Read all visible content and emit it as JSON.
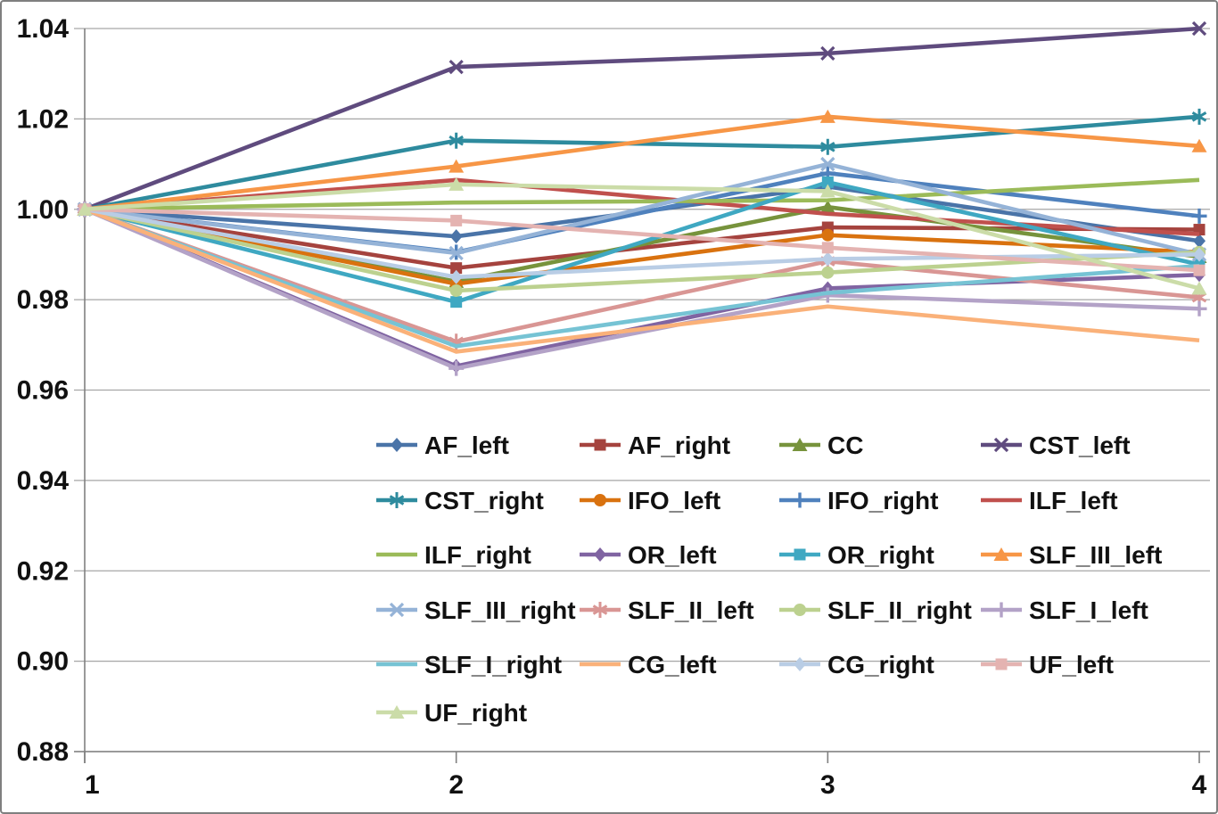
{
  "figure": {
    "background": "#ffffff",
    "border_color": "#7f7f7f",
    "gridline_color": "#a6a6a6",
    "axis_color": "#808080",
    "text_color": "#111111"
  },
  "chart_data": {
    "type": "line",
    "x": [
      1,
      2,
      3,
      4
    ],
    "xtick_labels": [
      "1",
      "2",
      "3",
      "4"
    ],
    "ytick_labels": [
      "1.04",
      "1.02",
      "1.00",
      "0.98",
      "0.96",
      "0.94",
      "0.92",
      "0.90",
      "0.88"
    ],
    "ylim": [
      0.88,
      1.04
    ],
    "ytick_step": 0.02,
    "xlabel": "",
    "ylabel": "",
    "title": "",
    "grid": true,
    "legend_position": "inside-lower-center",
    "legend_columns": 4,
    "series": [
      {
        "name": "AF_left",
        "color": "#4a74a8",
        "marker": "diamond",
        "values": [
          1.0,
          0.994,
          1.005,
          0.993
        ]
      },
      {
        "name": "AF_right",
        "color": "#a5433e",
        "marker": "square",
        "values": [
          1.0,
          0.987,
          0.996,
          0.9955
        ]
      },
      {
        "name": "CC",
        "color": "#77933c",
        "marker": "triangle",
        "values": [
          1.0,
          0.984,
          1.0005,
          0.9895
        ]
      },
      {
        "name": "CST_left",
        "color": "#5f4b7e",
        "marker": "x",
        "values": [
          1.0,
          1.0315,
          1.0345,
          1.04
        ]
      },
      {
        "name": "CST_right",
        "color": "#2e8b9e",
        "marker": "asterisk",
        "values": [
          1.0,
          1.0152,
          1.0138,
          1.0205
        ]
      },
      {
        "name": "IFO_left",
        "color": "#d9720f",
        "marker": "circle",
        "values": [
          1.0,
          0.9835,
          0.9943,
          0.9905
        ]
      },
      {
        "name": "IFO_right",
        "color": "#4f81bd",
        "marker": "plus",
        "values": [
          1.0,
          0.9905,
          1.008,
          0.9985
        ]
      },
      {
        "name": "ILF_left",
        "color": "#c0504d",
        "marker": "dash",
        "values": [
          1.0,
          1.0065,
          0.999,
          0.9945
        ]
      },
      {
        "name": "ILF_right",
        "color": "#9bbb59",
        "marker": "dot",
        "values": [
          1.0,
          1.0015,
          1.002,
          1.0065
        ]
      },
      {
        "name": "OR_left",
        "color": "#8064a2",
        "marker": "diamond",
        "values": [
          1.0,
          0.9653,
          0.9825,
          0.9855
        ]
      },
      {
        "name": "OR_right",
        "color": "#3fa8c2",
        "marker": "square",
        "values": [
          1.0,
          0.9795,
          1.006,
          0.9878
        ]
      },
      {
        "name": "SLF_III_left",
        "color": "#f79646",
        "marker": "triangle",
        "values": [
          1.0,
          1.0095,
          1.0205,
          1.014
        ]
      },
      {
        "name": "SLF_III_right",
        "color": "#95b3d7",
        "marker": "x",
        "values": [
          1.0,
          0.9903,
          1.01,
          0.99
        ]
      },
      {
        "name": "SLF_II_left",
        "color": "#d99694",
        "marker": "asterisk",
        "values": [
          1.0,
          0.9707,
          0.9885,
          0.9805
        ]
      },
      {
        "name": "SLF_II_right",
        "color": "#bcd18f",
        "marker": "circle",
        "values": [
          1.0,
          0.982,
          0.986,
          0.9905
        ]
      },
      {
        "name": "SLF_I_left",
        "color": "#b3a2c7",
        "marker": "plus",
        "values": [
          1.0,
          0.9648,
          0.981,
          0.978
        ]
      },
      {
        "name": "SLF_I_right",
        "color": "#76c3d4",
        "marker": "dash",
        "values": [
          1.0,
          0.9697,
          0.9815,
          0.9875
        ]
      },
      {
        "name": "CG_left",
        "color": "#fab179",
        "marker": "dot",
        "values": [
          1.0,
          0.9685,
          0.9785,
          0.971
        ]
      },
      {
        "name": "CG_right",
        "color": "#b9cde5",
        "marker": "diamond",
        "values": [
          1.0,
          0.985,
          0.989,
          0.99
        ]
      },
      {
        "name": "UF_left",
        "color": "#e4b3b1",
        "marker": "square",
        "values": [
          1.0,
          0.9975,
          0.9915,
          0.9865
        ]
      },
      {
        "name": "UF_right",
        "color": "#cbdca8",
        "marker": "triangle",
        "values": [
          1.0,
          1.0055,
          1.004,
          0.9825
        ]
      }
    ]
  }
}
